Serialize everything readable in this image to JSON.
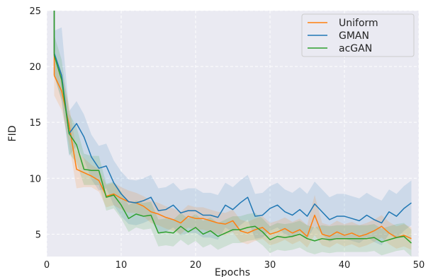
{
  "chart_data": {
    "type": "line",
    "title": "",
    "xlabel": "Epochs",
    "ylabel": "FID",
    "xlim": [
      0,
      50
    ],
    "ylim": [
      3,
      25
    ],
    "xticks": [
      0,
      10,
      20,
      30,
      40,
      50
    ],
    "yticks": [
      5,
      10,
      15,
      20,
      25
    ],
    "grid": true,
    "legend": "top-right",
    "x": [
      1,
      2,
      3,
      4,
      5,
      6,
      7,
      8,
      9,
      10,
      11,
      12,
      13,
      14,
      15,
      16,
      17,
      18,
      19,
      20,
      21,
      22,
      23,
      24,
      25,
      26,
      27,
      28,
      29,
      30,
      31,
      32,
      33,
      34,
      35,
      36,
      37,
      38,
      39,
      40,
      41,
      42,
      43,
      44,
      45,
      46,
      47,
      48,
      49
    ],
    "series": [
      {
        "name": "Uniform",
        "color": "#ff7f0e",
        "values": [
          19.2,
          17.8,
          14.8,
          10.8,
          10.5,
          10.2,
          9.8,
          8.4,
          8.6,
          8.2,
          7.9,
          7.8,
          7.5,
          7.0,
          6.8,
          6.5,
          6.3,
          6.0,
          6.6,
          6.4,
          6.4,
          6.2,
          6.0,
          5.9,
          6.2,
          5.3,
          5.1,
          5.4,
          5.6,
          5.0,
          5.2,
          5.5,
          5.1,
          5.4,
          4.8,
          6.7,
          5.0,
          4.8,
          5.2,
          4.9,
          5.1,
          4.8,
          5.0,
          5.3,
          5.7,
          5.1,
          4.7,
          4.9,
          4.6
        ],
        "upper": [
          21.0,
          19.5,
          16.5,
          12.5,
          11.8,
          11.2,
          10.8,
          9.4,
          9.6,
          9.2,
          8.9,
          8.7,
          8.4,
          8.0,
          7.8,
          7.5,
          7.3,
          7.0,
          7.6,
          7.4,
          7.4,
          7.2,
          7.0,
          6.9,
          7.2,
          6.3,
          6.1,
          6.4,
          6.6,
          6.0,
          6.2,
          6.5,
          6.1,
          6.4,
          5.8,
          8.5,
          6.0,
          5.8,
          6.2,
          5.9,
          6.1,
          5.8,
          6.0,
          6.3,
          6.7,
          6.1,
          5.7,
          5.9,
          5.6
        ],
        "lower": [
          17.4,
          16.1,
          13.1,
          9.1,
          9.2,
          9.2,
          8.8,
          7.4,
          7.6,
          7.2,
          6.9,
          6.9,
          6.6,
          6.0,
          5.8,
          5.5,
          5.3,
          5.0,
          5.6,
          5.4,
          5.4,
          5.2,
          5.0,
          4.9,
          5.2,
          4.3,
          4.1,
          4.4,
          4.6,
          4.0,
          4.2,
          4.5,
          4.1,
          4.4,
          3.8,
          4.9,
          4.0,
          3.8,
          4.2,
          3.9,
          4.1,
          3.8,
          4.0,
          4.3,
          4.7,
          4.1,
          3.7,
          3.9,
          3.6
        ]
      },
      {
        "name": "GMAN",
        "color": "#1f77b4",
        "values": [
          21.2,
          19.2,
          14.0,
          14.9,
          13.7,
          11.9,
          10.9,
          11.1,
          9.6,
          8.6,
          7.9,
          7.8,
          8.0,
          8.3,
          7.1,
          7.2,
          7.6,
          6.9,
          7.1,
          7.1,
          6.7,
          6.7,
          6.5,
          7.6,
          7.2,
          7.8,
          8.3,
          6.6,
          6.7,
          7.3,
          7.6,
          7.0,
          6.7,
          7.2,
          6.6,
          7.7,
          7.0,
          6.3,
          6.6,
          6.6,
          6.4,
          6.2,
          6.7,
          6.3,
          6.0,
          7.0,
          6.6,
          7.3,
          7.8
        ],
        "upper": [
          23.2,
          23.5,
          16.0,
          16.9,
          15.7,
          13.9,
          12.9,
          13.1,
          11.6,
          10.6,
          9.9,
          9.8,
          10.0,
          10.3,
          9.1,
          9.2,
          9.6,
          8.9,
          9.1,
          9.1,
          8.7,
          8.7,
          8.5,
          9.6,
          9.2,
          9.8,
          10.3,
          8.6,
          8.7,
          9.3,
          9.6,
          9.0,
          8.7,
          9.2,
          8.6,
          9.7,
          9.0,
          8.3,
          8.6,
          8.6,
          8.4,
          8.2,
          8.7,
          8.3,
          8.0,
          9.0,
          8.6,
          9.3,
          9.8
        ],
        "lower": [
          19.2,
          16.9,
          12.0,
          12.9,
          11.7,
          9.9,
          8.9,
          9.1,
          7.6,
          6.6,
          5.9,
          5.8,
          6.0,
          6.3,
          5.1,
          5.2,
          5.6,
          4.9,
          5.1,
          5.1,
          4.7,
          4.7,
          4.5,
          5.6,
          5.2,
          5.8,
          6.3,
          4.6,
          4.7,
          5.3,
          5.6,
          5.0,
          4.7,
          5.2,
          4.6,
          5.7,
          5.0,
          4.3,
          4.6,
          4.6,
          4.4,
          4.2,
          4.7,
          4.3,
          4.0,
          5.0,
          4.6,
          5.3,
          5.8
        ]
      },
      {
        "name": "acGAN",
        "color": "#2ca02c",
        "values": [
          21.0,
          18.8,
          14.0,
          13.0,
          10.8,
          10.7,
          10.7,
          8.3,
          8.5,
          7.6,
          6.4,
          6.8,
          6.6,
          6.7,
          5.1,
          5.2,
          5.1,
          5.7,
          5.2,
          5.6,
          5.0,
          5.3,
          4.8,
          5.1,
          5.4,
          5.4,
          5.6,
          5.7,
          5.2,
          4.5,
          4.8,
          4.7,
          4.8,
          5.0,
          4.6,
          4.4,
          4.6,
          4.5,
          4.6,
          4.6,
          4.6,
          4.6,
          4.6,
          4.7,
          4.3,
          4.5,
          4.7,
          4.8,
          4.2
        ],
        "upper": [
          22.8,
          20.6,
          15.8,
          14.6,
          12.2,
          12.0,
          12.0,
          9.5,
          9.7,
          8.8,
          7.6,
          8.0,
          7.8,
          7.9,
          6.3,
          6.4,
          6.3,
          6.9,
          6.4,
          6.8,
          6.2,
          6.5,
          6.0,
          6.3,
          6.6,
          6.6,
          6.8,
          6.9,
          6.4,
          5.7,
          6.0,
          5.9,
          6.0,
          6.2,
          5.8,
          5.6,
          5.8,
          5.7,
          5.8,
          5.8,
          5.8,
          5.8,
          5.8,
          5.9,
          5.5,
          5.7,
          5.9,
          6.0,
          5.4
        ],
        "lower": [
          19.2,
          17.0,
          12.2,
          11.4,
          9.4,
          9.4,
          9.4,
          7.1,
          7.3,
          6.4,
          5.2,
          5.6,
          5.4,
          5.5,
          3.9,
          4.0,
          3.9,
          4.5,
          4.0,
          4.4,
          3.8,
          4.1,
          3.6,
          3.9,
          4.2,
          4.2,
          4.4,
          4.5,
          4.0,
          3.3,
          3.6,
          3.5,
          3.6,
          3.8,
          3.4,
          3.2,
          3.4,
          3.3,
          3.4,
          3.4,
          3.4,
          3.4,
          3.4,
          3.5,
          3.1,
          3.3,
          3.5,
          3.6,
          3.0
        ]
      }
    ]
  }
}
